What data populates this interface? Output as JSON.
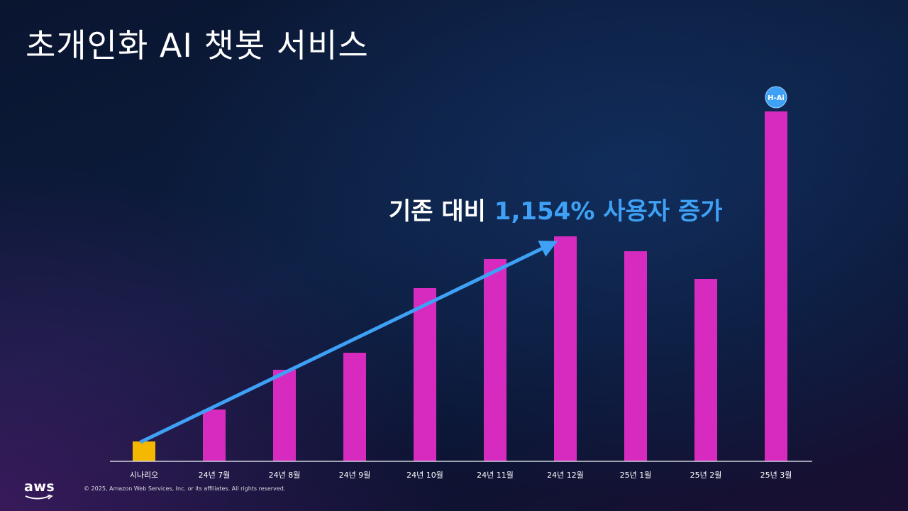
{
  "slide": {
    "title": "초개인화 AI 챗봇 서비스",
    "headline_prefix": "기존 대비 ",
    "headline_highlight": "1,154% 사용자 증가"
  },
  "chart_data": {
    "type": "bar",
    "categories": [
      "시나리오",
      "24년 7월",
      "24년 8월",
      "24년 9월",
      "24년 10월",
      "24년 11월",
      "24년 12월",
      "25년 1월",
      "25년 2월",
      "25년 3월"
    ],
    "values": [
      28,
      73,
      129,
      153,
      244,
      285,
      317,
      296,
      257,
      493
    ],
    "bar_colors": [
      "#f5b800",
      "#d72bbf",
      "#d72bbf",
      "#d72bbf",
      "#d72bbf",
      "#d72bbf",
      "#d72bbf",
      "#d72bbf",
      "#d72bbf",
      "#d72bbf"
    ],
    "ylim": [
      0,
      500
    ],
    "grid": false,
    "trend_arrow": {
      "from_category": "시나리오",
      "to_category": "24년 12월",
      "color": "#3ea1f5"
    },
    "badge": {
      "category": "25년 3월",
      "label": "H-Ai",
      "color": "#3ea1f5"
    }
  },
  "footer": {
    "logo_text": "aws",
    "copyright": "© 2025, Amazon Web Services, Inc. or its affiliates. All rights reserved."
  }
}
